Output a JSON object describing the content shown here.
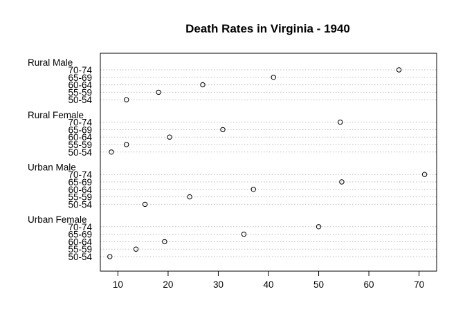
{
  "chart_data": {
    "type": "scatter",
    "title": "Death Rates in Virginia - 1940",
    "xlabel": "",
    "ylabel": "",
    "xlim": [
      6.5,
      73.5
    ],
    "xticks": [
      10,
      20,
      30,
      40,
      50,
      60,
      70
    ],
    "grid": true,
    "categories": [
      "50-54",
      "55-59",
      "60-64",
      "65-69",
      "70-74"
    ],
    "groups": [
      {
        "name": "Urban Female",
        "values": [
          8.4,
          13.6,
          19.3,
          35.1,
          50.0
        ]
      },
      {
        "name": "Urban Male",
        "values": [
          15.4,
          24.3,
          37.0,
          54.6,
          71.1
        ]
      },
      {
        "name": "Rural Female",
        "values": [
          8.7,
          11.7,
          20.3,
          30.9,
          54.3
        ]
      },
      {
        "name": "Rural Male",
        "values": [
          11.7,
          18.1,
          26.9,
          41.0,
          66.0
        ]
      }
    ]
  }
}
